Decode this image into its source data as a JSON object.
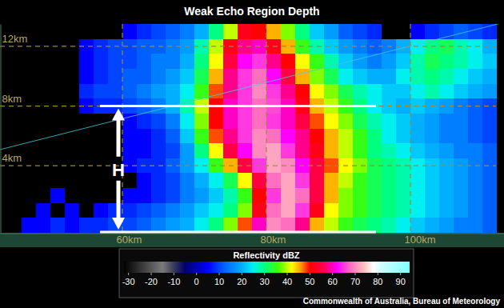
{
  "chart_data": {
    "type": "heatmap",
    "title": "Weak Echo Region Depth",
    "source": "Commonwealth of Australia, Bureau of Meteorology",
    "xlim": [
      43,
      113
    ],
    "xticks": [
      {
        "value": 60,
        "label": "60km"
      },
      {
        "value": 80,
        "label": "80km"
      },
      {
        "value": 100,
        "label": "100km"
      }
    ],
    "ylim": [
      -0.5,
      13.5
    ],
    "yticks": [
      {
        "value": 4,
        "label": "4km"
      },
      {
        "value": 8,
        "label": "8km"
      },
      {
        "value": 12,
        "label": "12km"
      }
    ],
    "grid": true,
    "annotation": {
      "text": "H",
      "top": 8,
      "bottom": -0.5
    },
    "colorbar": {
      "title": "Reflectivity dBZ",
      "range": [
        -32,
        94
      ],
      "ticks": [
        -30,
        -20,
        -10,
        0,
        10,
        20,
        30,
        40,
        50,
        60,
        70,
        80,
        90
      ]
    },
    "x_edges": [
      46,
      48,
      50,
      52,
      54,
      56,
      58,
      60,
      62,
      64,
      66,
      68,
      70,
      72,
      74,
      76,
      78,
      80,
      82,
      84,
      86,
      88,
      90,
      92,
      94,
      96,
      98,
      100,
      102,
      104,
      106,
      108,
      110,
      112
    ],
    "y_edges": [
      -0.5,
      0.5,
      1.5,
      2.5,
      3.5,
      4.5,
      5.5,
      6.5,
      7.5,
      8.5,
      9.5,
      10.5,
      11.5,
      12.5,
      13.5
    ],
    "cells": [
      [
        5,
        5,
        8,
        5,
        8,
        8,
        10,
        10,
        12,
        15,
        18,
        20,
        25,
        30,
        38,
        48,
        60,
        70,
        68,
        58,
        45,
        40,
        35,
        32,
        30,
        28,
        25,
        22,
        20,
        18,
        15,
        15,
        12
      ],
      [
        null,
        5,
        null,
        5,
        null,
        5,
        8,
        8,
        10,
        12,
        15,
        18,
        22,
        25,
        30,
        38,
        52,
        68,
        72,
        65,
        52,
        42,
        38,
        35,
        32,
        30,
        28,
        25,
        22,
        20,
        18,
        15,
        12
      ],
      [
        null,
        null,
        5,
        null,
        null,
        null,
        null,
        5,
        5,
        8,
        10,
        15,
        18,
        22,
        28,
        35,
        50,
        65,
        72,
        68,
        55,
        45,
        38,
        35,
        32,
        30,
        28,
        25,
        22,
        20,
        18,
        15,
        12
      ],
      [
        null,
        null,
        null,
        null,
        null,
        null,
        null,
        null,
        5,
        8,
        10,
        15,
        20,
        25,
        32,
        42,
        55,
        68,
        72,
        65,
        55,
        45,
        40,
        35,
        32,
        30,
        28,
        25,
        22,
        20,
        18,
        15,
        12
      ],
      [
        null,
        null,
        null,
        null,
        null,
        null,
        null,
        5,
        8,
        8,
        12,
        18,
        25,
        35,
        45,
        55,
        65,
        72,
        70,
        62,
        55,
        48,
        42,
        38,
        32,
        30,
        28,
        25,
        22,
        20,
        18,
        15,
        12
      ],
      [
        null,
        null,
        null,
        null,
        null,
        null,
        null,
        5,
        5,
        8,
        10,
        18,
        30,
        42,
        55,
        62,
        70,
        72,
        65,
        58,
        52,
        45,
        40,
        35,
        30,
        28,
        25,
        22,
        20,
        18,
        15,
        15,
        12
      ],
      [
        null,
        null,
        null,
        null,
        null,
        null,
        null,
        5,
        5,
        8,
        12,
        22,
        35,
        48,
        58,
        65,
        70,
        68,
        62,
        58,
        50,
        45,
        40,
        35,
        30,
        25,
        22,
        20,
        18,
        15,
        15,
        12,
        10
      ],
      [
        null,
        null,
        null,
        null,
        null,
        null,
        null,
        5,
        8,
        10,
        15,
        25,
        38,
        50,
        60,
        65,
        68,
        65,
        60,
        55,
        48,
        42,
        38,
        32,
        28,
        25,
        22,
        20,
        18,
        15,
        15,
        12,
        10
      ],
      [
        null,
        null,
        null,
        null,
        5,
        8,
        8,
        10,
        12,
        15,
        20,
        28,
        40,
        50,
        60,
        65,
        68,
        66,
        60,
        52,
        45,
        40,
        35,
        30,
        25,
        22,
        20,
        22,
        20,
        18,
        15,
        12,
        10
      ],
      [
        null,
        null,
        null,
        null,
        8,
        10,
        10,
        12,
        15,
        18,
        20,
        25,
        35,
        48,
        58,
        65,
        70,
        65,
        58,
        50,
        42,
        38,
        32,
        28,
        25,
        22,
        22,
        25,
        28,
        25,
        22,
        20,
        18
      ],
      [
        null,
        null,
        null,
        null,
        5,
        8,
        10,
        12,
        12,
        15,
        18,
        22,
        32,
        45,
        58,
        65,
        68,
        62,
        55,
        45,
        38,
        32,
        25,
        22,
        20,
        20,
        25,
        28,
        30,
        28,
        25,
        22,
        20
      ],
      [
        null,
        null,
        null,
        null,
        5,
        8,
        10,
        10,
        12,
        15,
        15,
        20,
        30,
        42,
        55,
        62,
        65,
        58,
        50,
        42,
        35,
        28,
        22,
        18,
        15,
        18,
        22,
        28,
        32,
        30,
        28,
        25,
        22
      ],
      [
        null,
        null,
        null,
        null,
        5,
        8,
        10,
        10,
        12,
        12,
        15,
        18,
        28,
        40,
        52,
        58,
        60,
        52,
        45,
        35,
        28,
        22,
        18,
        15,
        12,
        15,
        20,
        25,
        30,
        32,
        28,
        25,
        20
      ],
      [
        null,
        null,
        null,
        null,
        null,
        null,
        null,
        5,
        8,
        10,
        12,
        15,
        20,
        30,
        40,
        52,
        50,
        45,
        38,
        30,
        22,
        18,
        12,
        10,
        8,
        null,
        null,
        5,
        8,
        10,
        12,
        10,
        8
      ]
    ]
  }
}
